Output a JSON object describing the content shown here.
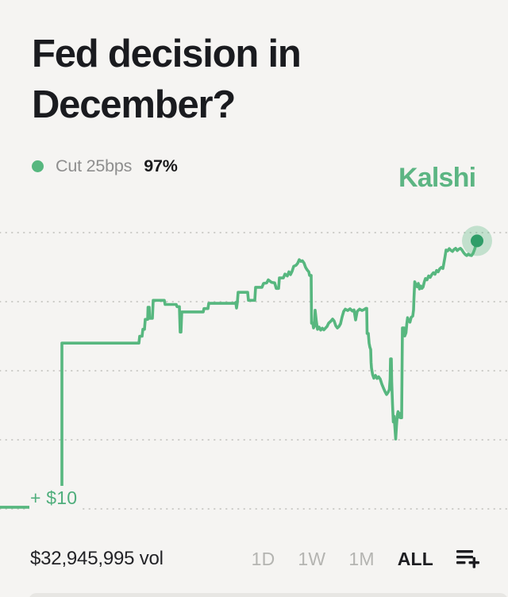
{
  "header": {
    "title_line1": "Fed decision in",
    "title_line2": "December?"
  },
  "legend": {
    "series_label": "Cut 25bps",
    "series_value": "97%"
  },
  "brand": {
    "logo_text": "Kalshi"
  },
  "annotations": {
    "gain_label": "+ $10"
  },
  "footer": {
    "volume_text": "$32,945,995 vol",
    "ranges": [
      {
        "label": "1D",
        "active": false
      },
      {
        "label": "1W",
        "active": false
      },
      {
        "label": "1M",
        "active": false
      },
      {
        "label": "ALL",
        "active": true
      }
    ],
    "add_icon": "playlist-add-icon"
  },
  "colors": {
    "background": "#f5f4f2",
    "line_green": "#57b77f",
    "dot_core_green": "#2f9d68",
    "dot_halo_green": "rgba(87,183,127,0.32)",
    "brand_green": "#5cb583",
    "gain_green": "#4fae7c",
    "text_dark": "#1a1b1f",
    "text_gray": "#8e8e8e",
    "inactive_gray": "#b4b4b1",
    "gridline_gray": "#cbcbc7"
  },
  "chart_data": {
    "type": "line",
    "title": "Cut 25bps probability over time",
    "series_name": "Cut 25bps",
    "unit": "percent",
    "ylim": [
      0,
      100
    ],
    "grid_values": [
      0,
      25,
      50,
      75,
      100
    ],
    "grid_style": "dotted",
    "legend_position": "top-left",
    "current_value": 97,
    "series": [
      {
        "name": "Cut 25bps",
        "points": [
          [
            0,
            0.6
          ],
          [
            78,
            0.6
          ],
          [
            78,
            60
          ],
          [
            175,
            60
          ],
          [
            176,
            62.5
          ],
          [
            179,
            62.5
          ],
          [
            180,
            65
          ],
          [
            182,
            65
          ],
          [
            183,
            68.6
          ],
          [
            186,
            68.6
          ],
          [
            186.5,
            73
          ],
          [
            188,
            73
          ],
          [
            188.5,
            69
          ],
          [
            192,
            69
          ],
          [
            193,
            75.5
          ],
          [
            207,
            75.5
          ],
          [
            208,
            74
          ],
          [
            222,
            74
          ],
          [
            223,
            73.2
          ],
          [
            226,
            73.2
          ],
          [
            227,
            64
          ],
          [
            228,
            64
          ],
          [
            229,
            71.3
          ],
          [
            256,
            71.3
          ],
          [
            257,
            72.5
          ],
          [
            262,
            72.5
          ],
          [
            263,
            74.4
          ],
          [
            296,
            74.4
          ],
          [
            297,
            74.7
          ],
          [
            298,
            72.7
          ],
          [
            299,
            74.7
          ],
          [
            300,
            78.4
          ],
          [
            312,
            78.4
          ],
          [
            313,
            75.5
          ],
          [
            321,
            75.5
          ],
          [
            322,
            80.2
          ],
          [
            330,
            80.2
          ],
          [
            332,
            81.6
          ],
          [
            336,
            81.8
          ],
          [
            338,
            82.9
          ],
          [
            342,
            82
          ],
          [
            346,
            81.8
          ],
          [
            348,
            79.8
          ],
          [
            351,
            79.8
          ],
          [
            352,
            83.6
          ],
          [
            357,
            83.6
          ],
          [
            359,
            85
          ],
          [
            362,
            84.3
          ],
          [
            364,
            85.8
          ],
          [
            366,
            84.8
          ],
          [
            368,
            86
          ],
          [
            370,
            87.8
          ],
          [
            373,
            88.2
          ],
          [
            375,
            88.9
          ],
          [
            377,
            90.2
          ],
          [
            379,
            89.6
          ],
          [
            381,
            89.8
          ],
          [
            383,
            89
          ],
          [
            385,
            87.4
          ],
          [
            387,
            86.5
          ],
          [
            389,
            85.8
          ],
          [
            390,
            84.5
          ],
          [
            392,
            84.5
          ],
          [
            392.5,
            67.2
          ],
          [
            394,
            67.2
          ],
          [
            395,
            65.5
          ],
          [
            396,
            66
          ],
          [
            397,
            71.9
          ],
          [
            398.5,
            68
          ],
          [
            400,
            65
          ],
          [
            402,
            65.8
          ],
          [
            404,
            64.7
          ],
          [
            406,
            65.4
          ],
          [
            408,
            64.8
          ],
          [
            410,
            65.4
          ],
          [
            412,
            66
          ],
          [
            414,
            67.2
          ],
          [
            417,
            68
          ],
          [
            419,
            68.7
          ],
          [
            421,
            68
          ],
          [
            423,
            66.3
          ],
          [
            425,
            65.5
          ],
          [
            427,
            66
          ],
          [
            429,
            67
          ],
          [
            431,
            69.5
          ],
          [
            433,
            71.5
          ],
          [
            435,
            72.3
          ],
          [
            438,
            71.8
          ],
          [
            441,
            72.4
          ],
          [
            444,
            71.6
          ],
          [
            446,
            72
          ],
          [
            448,
            68.4
          ],
          [
            450,
            71.5
          ],
          [
            453,
            72.3
          ],
          [
            456,
            71.8
          ],
          [
            459,
            72.2
          ],
          [
            461,
            72.6
          ],
          [
            462,
            72.6
          ],
          [
            462.5,
            63.5
          ],
          [
            464,
            63.5
          ],
          [
            465,
            60
          ],
          [
            466,
            58.5
          ],
          [
            467,
            57.7
          ],
          [
            467.5,
            53
          ],
          [
            468,
            51
          ],
          [
            469.5,
            48.5
          ],
          [
            471,
            47.3
          ],
          [
            473,
            48.3
          ],
          [
            475,
            47.2
          ],
          [
            477,
            47.8
          ],
          [
            479,
            47
          ],
          [
            481,
            45.2
          ],
          [
            483,
            43.8
          ],
          [
            485,
            42.5
          ],
          [
            487,
            41.4
          ],
          [
            489,
            42.2
          ],
          [
            490.5,
            43.2
          ],
          [
            491.5,
            47
          ],
          [
            492,
            54.3
          ],
          [
            493,
            54.3
          ],
          [
            493.5,
            46
          ],
          [
            494.5,
            38
          ],
          [
            495.5,
            31.5
          ],
          [
            496.5,
            33.5
          ],
          [
            497.5,
            29.5
          ],
          [
            498.5,
            25.3
          ],
          [
            499.5,
            30
          ],
          [
            500.5,
            33.8
          ],
          [
            501.5,
            35.2
          ],
          [
            502.5,
            33.2
          ],
          [
            503.5,
            34.6
          ],
          [
            504.5,
            33
          ],
          [
            506,
            33
          ],
          [
            506.5,
            50
          ],
          [
            507,
            65.5
          ],
          [
            509,
            65.5
          ],
          [
            510,
            62.6
          ],
          [
            511.5,
            63.8
          ],
          [
            512.5,
            67
          ],
          [
            513.5,
            69.2
          ],
          [
            515,
            68
          ],
          [
            516.5,
            67.6
          ],
          [
            518,
            69.3
          ],
          [
            520,
            69.8
          ],
          [
            521,
            72
          ],
          [
            521.5,
            76
          ],
          [
            522.5,
            82.2
          ],
          [
            524,
            81
          ],
          [
            525.5,
            80.4
          ],
          [
            527,
            81.6
          ],
          [
            528.5,
            79.6
          ],
          [
            530,
            80.7
          ],
          [
            531.5,
            79.8
          ],
          [
            533,
            80.3
          ],
          [
            534.5,
            82.1
          ],
          [
            536,
            83.4
          ],
          [
            538,
            82.9
          ],
          [
            540,
            84.3
          ],
          [
            542,
            83.8
          ],
          [
            544,
            84.8
          ],
          [
            546,
            85.5
          ],
          [
            548,
            84.9
          ],
          [
            550,
            86.3
          ],
          [
            552,
            85.8
          ],
          [
            554,
            86.9
          ],
          [
            556,
            87.4
          ],
          [
            558,
            87
          ],
          [
            559,
            88.6
          ],
          [
            560.5,
            91
          ],
          [
            562,
            93.7
          ],
          [
            564,
            93.4
          ],
          [
            566,
            94.2
          ],
          [
            568,
            93.6
          ],
          [
            570,
            93.2
          ],
          [
            572,
            93.9
          ],
          [
            574,
            94.3
          ],
          [
            576,
            93.5
          ],
          [
            578,
            94
          ],
          [
            580,
            94.3
          ],
          [
            582,
            93.7
          ],
          [
            584,
            92.8
          ],
          [
            586,
            92.1
          ],
          [
            588,
            91.7
          ],
          [
            590,
            92.2
          ],
          [
            592,
            91.8
          ],
          [
            594,
            91.7
          ],
          [
            596,
            92.5
          ],
          [
            598,
            94
          ],
          [
            599.5,
            95.5
          ],
          [
            601,
            97
          ]
        ]
      }
    ]
  }
}
